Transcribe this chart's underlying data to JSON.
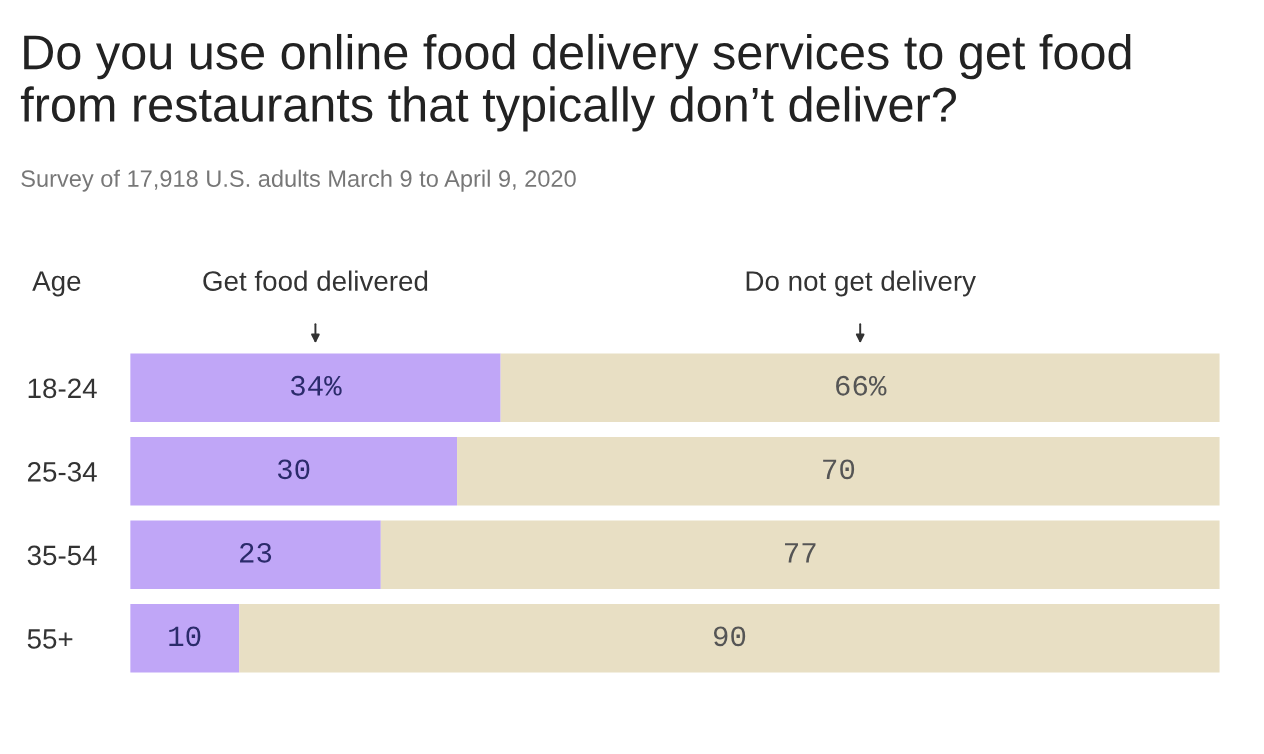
{
  "chart_data": {
    "type": "bar",
    "orientation": "horizontal",
    "stacked": true,
    "title": "Do you use online food delivery services to get food\nfrom restaurants that typically don’t deliver?",
    "subtitle": "Survey of 17,918 U.S. adults March 9 to April 9, 2020",
    "ylabel": "Age",
    "categories": [
      "18-24",
      "25-34",
      "35-54",
      "55+"
    ],
    "series": [
      {
        "name": "Get food delivered",
        "color": "#c0a6f7",
        "values": [
          34,
          30,
          23,
          10
        ],
        "value_labels": [
          "34%",
          "30",
          "23",
          "10"
        ]
      },
      {
        "name": "Do not get delivery",
        "color": "#e8dfc4",
        "values": [
          66,
          70,
          77,
          90
        ],
        "value_labels": [
          "66%",
          "70",
          "77",
          "90"
        ]
      }
    ],
    "xlim": [
      0,
      100
    ],
    "tick_labels": "y",
    "grid": false,
    "legend": false
  }
}
